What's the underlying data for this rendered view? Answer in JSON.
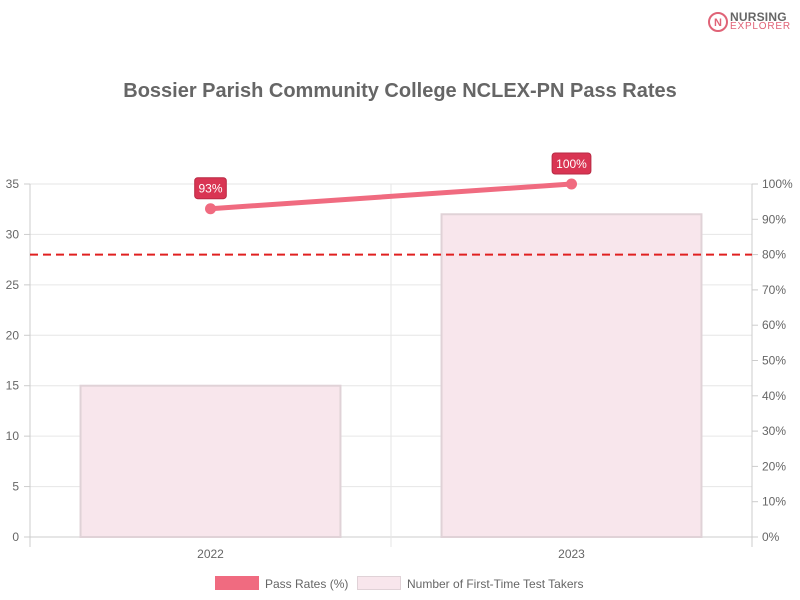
{
  "brand": {
    "line1": "NURSING",
    "line2": "EXPLORER",
    "mark": "N"
  },
  "colors": {
    "line": "#f06b80",
    "bar_fill": "#f8e6ec",
    "bar_stroke": "#e0d2d7",
    "target": "#e02020",
    "label_bg": "#d93553",
    "grid": "#e6e6e6"
  },
  "chart_data": {
    "type": "bar",
    "title": "Bossier Parish Community College NCLEX-PN Pass Rates",
    "categories": [
      "2022",
      "2023"
    ],
    "series": [
      {
        "name": "Pass Rates (%)",
        "type": "line",
        "axis": "right",
        "values": [
          93,
          100
        ],
        "labels": [
          "93%",
          "100%"
        ]
      },
      {
        "name": "Number of First-Time Test Takers",
        "type": "bar",
        "axis": "left",
        "values": [
          15,
          32
        ]
      }
    ],
    "left_axis": {
      "min": 0,
      "max": 35,
      "step": 5
    },
    "right_axis": {
      "min": 0,
      "max": 100,
      "step": 10,
      "suffix": "%"
    },
    "reference_line": {
      "axis": "right",
      "value": 80,
      "style": "dashed"
    },
    "legend_position": "bottom",
    "grid": true
  }
}
